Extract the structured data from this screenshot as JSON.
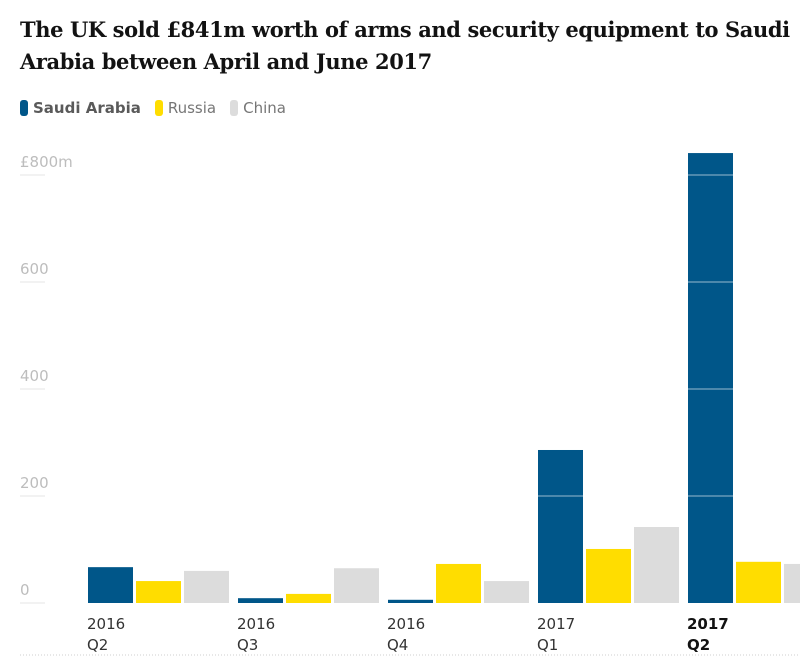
{
  "title": "The UK sold £841m worth of arms and security equipment to Saudi Arabia between April and June 2017",
  "legend": [
    {
      "label": "Saudi Arabia",
      "color": "#005689"
    },
    {
      "label": "Russia",
      "color": "#ffdd00"
    },
    {
      "label": "China",
      "color": "#dcdcdc"
    }
  ],
  "chart_data": {
    "type": "bar",
    "title": "The UK sold £841m worth of arms and security equipment to Saudi Arabia between April and June 2017",
    "categories": [
      [
        "2016",
        "Q2"
      ],
      [
        "2016",
        "Q3"
      ],
      [
        "2016",
        "Q4"
      ],
      [
        "2017",
        "Q1"
      ],
      [
        "2017",
        "Q2"
      ]
    ],
    "highlight_category": 4,
    "series": [
      {
        "name": "Saudi Arabia",
        "color": "#005689",
        "values": [
          67,
          9,
          6,
          286,
          841
        ]
      },
      {
        "name": "Russia",
        "color": "#ffdd00",
        "values": [
          41,
          17,
          73,
          101,
          77
        ]
      },
      {
        "name": "China",
        "color": "#dcdcdc",
        "values": [
          60,
          65,
          41,
          142,
          73
        ]
      }
    ],
    "yticks": [
      {
        "value": 0,
        "label": "0"
      },
      {
        "value": 200,
        "label": "200"
      },
      {
        "value": 400,
        "label": "400"
      },
      {
        "value": 600,
        "label": "600"
      },
      {
        "value": 800,
        "label": "£800m"
      }
    ],
    "ylim": [
      0,
      841
    ],
    "ylabel": "",
    "xlabel": "",
    "grid": true,
    "legend_position": "top-left"
  }
}
